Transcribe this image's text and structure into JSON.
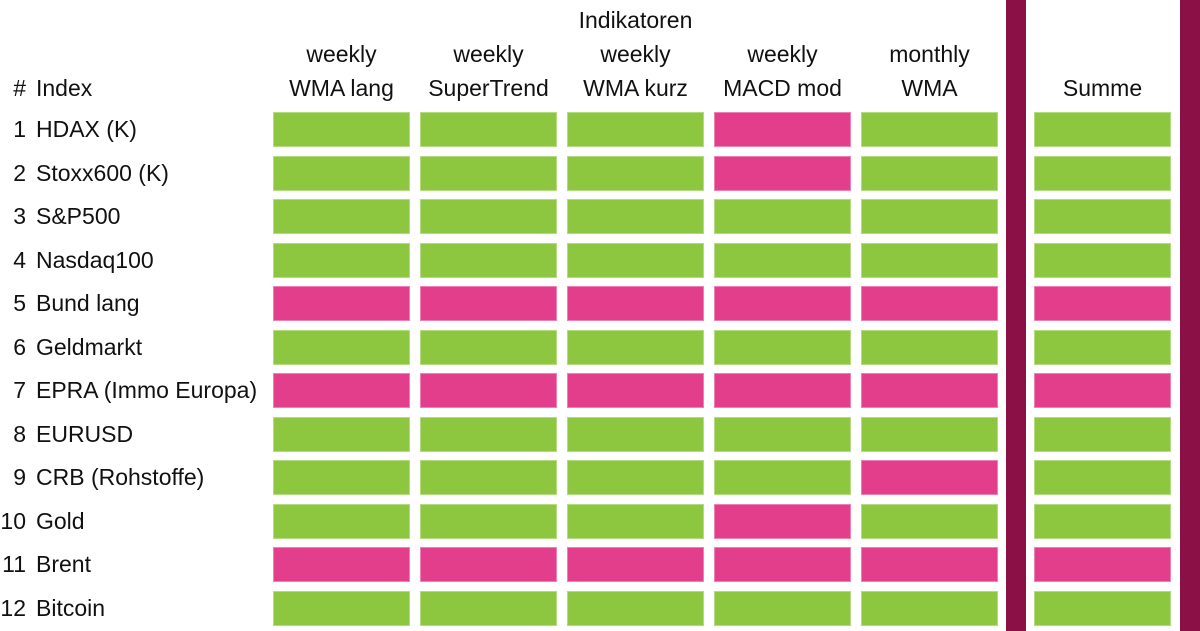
{
  "header": {
    "index_hash": "#",
    "index_label": "Index"
  },
  "colors": {
    "green": "#8DC63F",
    "pink": "#E33E8C",
    "separator": "#8A1046",
    "text": "#111111",
    "background": "#FFFFFF"
  },
  "chart_data": {
    "type": "heatmap",
    "title": "Indikatoren",
    "columns": [
      {
        "id": "weekly-wma-lang",
        "line1": "weekly",
        "line2": "WMA lang"
      },
      {
        "id": "weekly-supertrend",
        "line1": "weekly",
        "line2": "SuperTrend"
      },
      {
        "id": "weekly-wma-kurz",
        "line1": "weekly",
        "line2": "WMA kurz"
      },
      {
        "id": "weekly-macd-mod",
        "line1": "weekly",
        "line2": "MACD mod"
      },
      {
        "id": "monthly-wma",
        "line1": "monthly",
        "line2": "WMA"
      }
    ],
    "summe_column": "Summe",
    "row_numbers": [
      "1",
      "2",
      "3",
      "4",
      "5",
      "6",
      "7",
      "8",
      "9",
      "10",
      "11",
      "12"
    ],
    "rows": [
      "HDAX (K)",
      "Stoxx600 (K)",
      "S&P500",
      "Nasdaq100",
      "Bund lang",
      "Geldmarkt",
      "EPRA (Immo Europa)",
      "EURUSD",
      "CRB (Rohstoffe)",
      "Gold",
      "Brent",
      "Bitcoin"
    ],
    "values": [
      [
        "green",
        "green",
        "green",
        "pink",
        "green",
        "green"
      ],
      [
        "green",
        "green",
        "green",
        "pink",
        "green",
        "green"
      ],
      [
        "green",
        "green",
        "green",
        "green",
        "green",
        "green"
      ],
      [
        "green",
        "green",
        "green",
        "green",
        "green",
        "green"
      ],
      [
        "pink",
        "pink",
        "pink",
        "pink",
        "pink",
        "pink"
      ],
      [
        "green",
        "green",
        "green",
        "green",
        "green",
        "green"
      ],
      [
        "pink",
        "pink",
        "pink",
        "pink",
        "pink",
        "pink"
      ],
      [
        "green",
        "green",
        "green",
        "green",
        "green",
        "green"
      ],
      [
        "green",
        "green",
        "green",
        "green",
        "pink",
        "green"
      ],
      [
        "green",
        "green",
        "green",
        "pink",
        "green",
        "green"
      ],
      [
        "pink",
        "pink",
        "pink",
        "pink",
        "pink",
        "pink"
      ],
      [
        "green",
        "green",
        "green",
        "green",
        "green",
        "green"
      ]
    ],
    "color_map": {
      "green": "#8DC63F",
      "pink": "#E33E8C"
    },
    "legend": "none",
    "grid": "off"
  }
}
